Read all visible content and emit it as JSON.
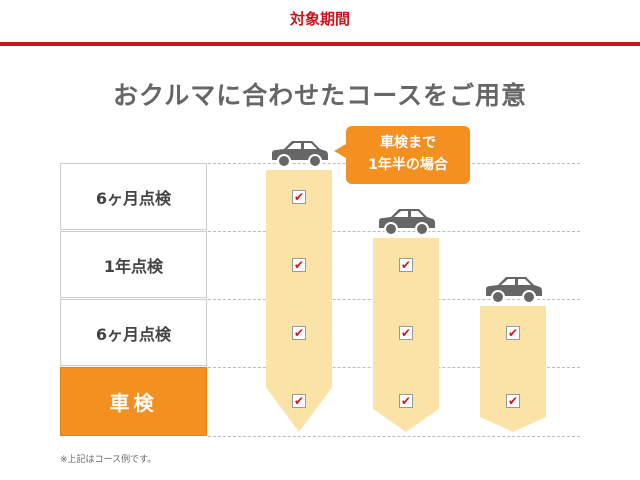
{
  "header": {
    "label": "対象期間"
  },
  "title": "おクルマに合わせたコースをご用意",
  "rows": [
    {
      "label": "6ヶ月点検",
      "highlight": false
    },
    {
      "label": "1年点検",
      "highlight": false
    },
    {
      "label": "6ヶ月点検",
      "highlight": false
    },
    {
      "label": "車検",
      "highlight": true
    }
  ],
  "courses": [
    {
      "checks": 4
    },
    {
      "checks": 3
    },
    {
      "checks": 2
    }
  ],
  "bubble": {
    "line1": "車検まで",
    "line2": "1年半の場合"
  },
  "note": "※上記はコース例です。",
  "colors": {
    "accent_red": "#c8161e",
    "orange": "#f39020",
    "bar": "#fbe3a8",
    "car": "#666666"
  },
  "icons": {
    "car": "car-icon",
    "check": "checkbox-checked-icon"
  }
}
